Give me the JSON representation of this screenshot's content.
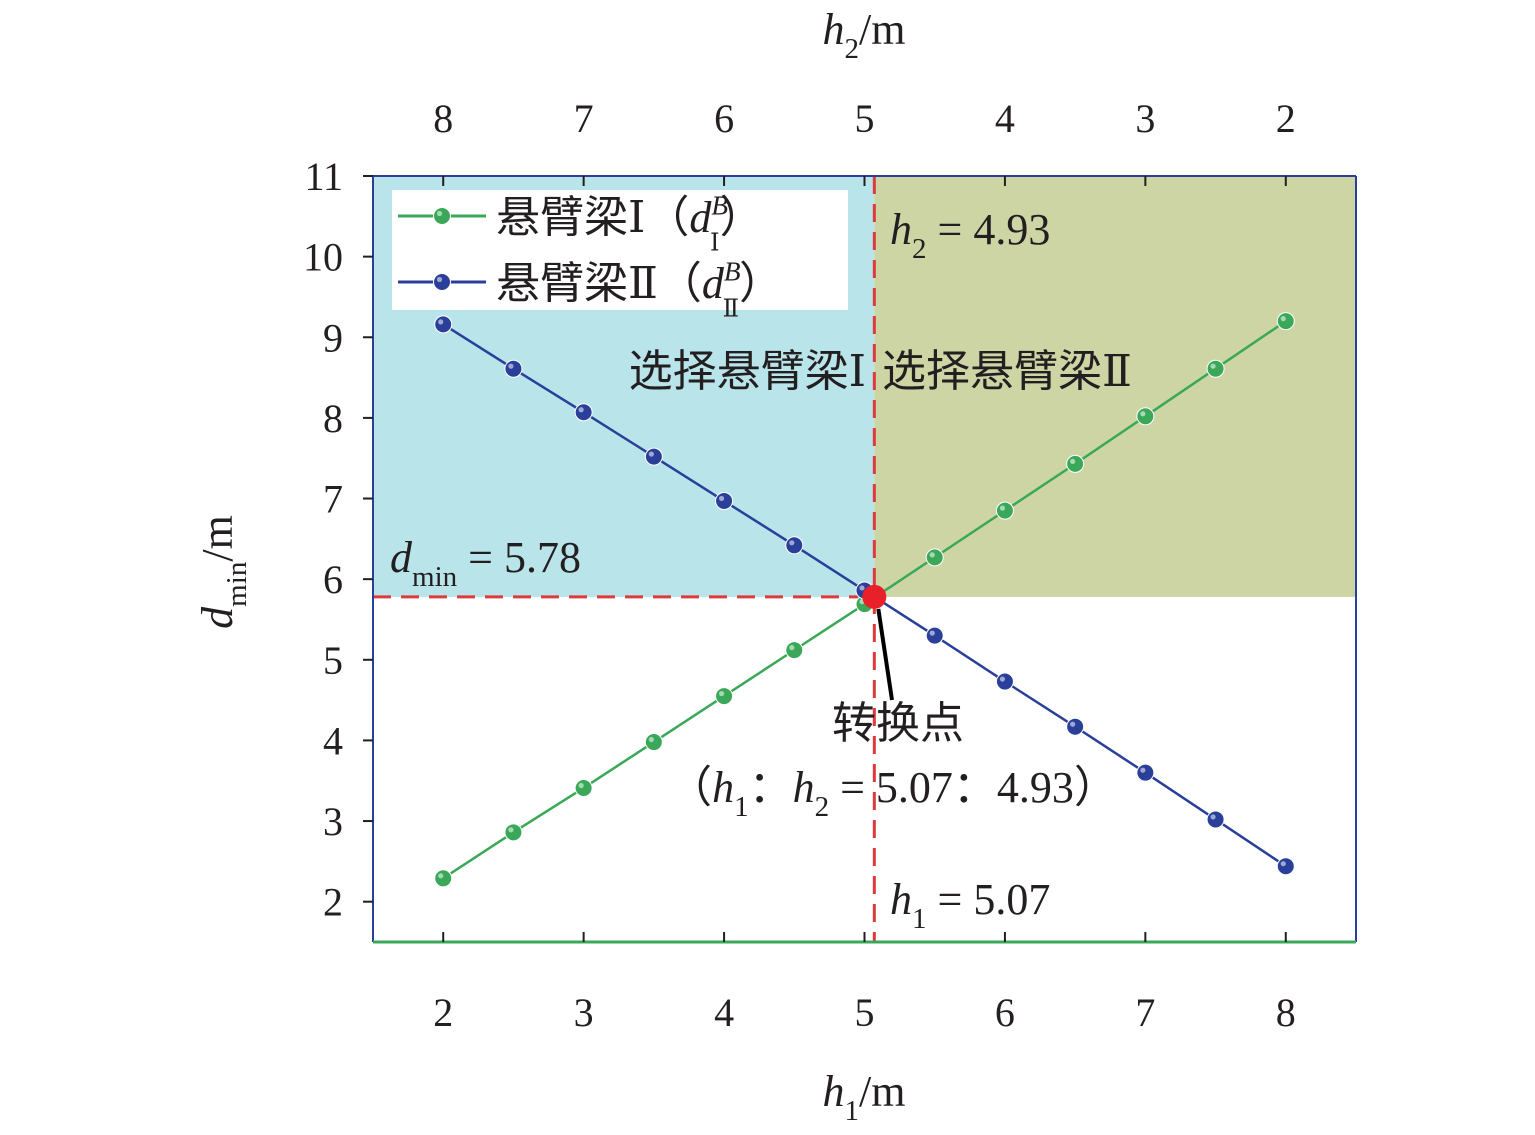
{
  "chart_data": {
    "type": "line",
    "x_axis_bottom": {
      "label_var": "h",
      "label_sub": "1",
      "label_unit": "/m",
      "range": [
        1.5,
        8.5
      ],
      "ticks": [
        2,
        3,
        4,
        5,
        6,
        7,
        8
      ]
    },
    "x_axis_top": {
      "label_var": "h",
      "label_sub": "2",
      "label_unit": "/m",
      "ticks": [
        8,
        7,
        6,
        5,
        4,
        3,
        2
      ],
      "relation": "h2 = 10 - h1"
    },
    "y_axis": {
      "label_var": "d",
      "label_sub": "min",
      "label_unit": "/m",
      "range": [
        1.5,
        11
      ],
      "ticks": [
        2,
        3,
        4,
        5,
        6,
        7,
        8,
        9,
        10,
        11
      ]
    },
    "x": [
      2,
      2.5,
      3,
      3.5,
      4,
      4.5,
      5,
      5.5,
      6,
      6.5,
      7,
      7.5,
      8
    ],
    "series": [
      {
        "name": "悬臂梁Ⅰ（",
        "name_var": "d",
        "name_sup": "B",
        "name_sub": "Ⅰ",
        "name_close": "）",
        "color": "#3aa858",
        "values": [
          2.29,
          2.86,
          3.41,
          3.98,
          4.55,
          5.12,
          5.69,
          6.27,
          6.85,
          7.43,
          8.02,
          8.61,
          9.2
        ]
      },
      {
        "name": "悬臂梁Ⅱ（",
        "name_var": "d",
        "name_sup": "B",
        "name_sub": "Ⅱ",
        "name_close": "）",
        "color": "#2a3f9a",
        "values": [
          9.16,
          8.61,
          8.07,
          7.52,
          6.97,
          6.42,
          5.86,
          5.3,
          4.73,
          4.17,
          3.6,
          3.02,
          2.44
        ]
      }
    ],
    "regions": [
      {
        "label": "选择悬臂梁Ⅰ",
        "color": "#b8e4ea"
      },
      {
        "label": "选择悬臂梁Ⅱ",
        "color": "#cdd5a5"
      }
    ],
    "switch_point": {
      "x": 5.07,
      "y": 5.78,
      "color": "#e8202a",
      "label": "转换点",
      "ratio_open": "（",
      "ratio_var1": "h",
      "ratio_sub1": "1",
      "ratio_sep": "：",
      "ratio_var2": "h",
      "ratio_sub2": "2",
      "ratio_values": "= 5.07：4.93）"
    },
    "annotations": {
      "h2_var": "h",
      "h2_sub": "2",
      "h2_text": "= 4.93",
      "h1_var": "h",
      "h1_sub": "1",
      "h1_text": "= 5.07",
      "dmin_var": "d",
      "dmin_sub": "min",
      "dmin_text": "= 5.78"
    },
    "guide_color": "#dd3b3b",
    "legend_position": "top-left",
    "grid": false
  }
}
